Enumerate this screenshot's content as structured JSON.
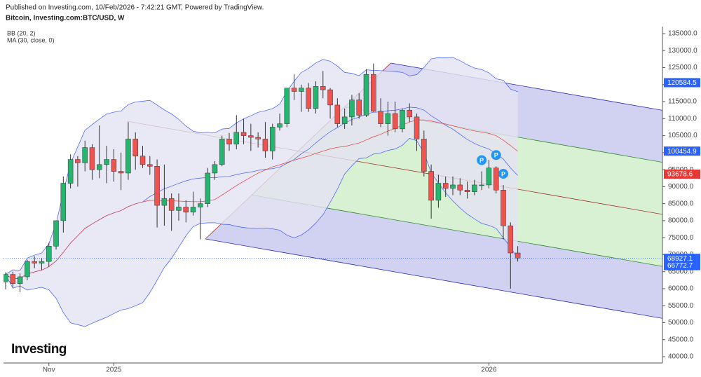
{
  "header": {
    "published": "Published on Investing.com, 10/Feb/2026 - 7:42:21 GMT, Powered by TradingView.",
    "symbol": "Bitcoin, Investing.com:BTC/USD, W"
  },
  "logo": "Investing",
  "chart_data": {
    "type": "candlestick",
    "indicators": [
      {
        "label": "BB (20, 2)",
        "kind": "bb",
        "period": 20,
        "mult": 2,
        "color": "#3d5afe",
        "fill": "#e3e3f3"
      },
      {
        "label": "MA (30, close, 0)",
        "kind": "ma",
        "period": 30,
        "color": "#e53935"
      }
    ],
    "up_color": "#26b56e",
    "down_color": "#ef5350",
    "categories": [
      null,
      null,
      null,
      null,
      null,
      null,
      "Nov",
      null,
      null,
      null,
      null,
      null,
      null,
      null,
      null,
      "2025",
      null,
      null,
      null,
      null,
      null,
      null,
      null,
      null,
      null,
      null,
      null,
      null,
      null,
      null,
      null,
      null,
      null,
      null,
      null,
      null,
      null,
      null,
      null,
      null,
      null,
      null,
      null,
      null,
      null,
      null,
      null,
      null,
      null,
      null,
      null,
      null,
      null,
      null,
      null,
      null,
      null,
      null,
      null,
      null,
      null,
      null,
      null,
      null,
      null,
      null,
      null,
      "2026",
      null,
      null,
      null,
      null
    ],
    "open": [
      62000,
      64200,
      61500,
      63500,
      68000,
      67500,
      68000,
      72500,
      80000,
      91000,
      98000,
      97000,
      101500,
      95000,
      96500,
      98000,
      94500,
      94000,
      104000,
      99000,
      96500,
      96000,
      84500,
      86500,
      83000,
      84000,
      82500,
      84000,
      85000,
      94000,
      96500,
      104000,
      102500,
      106000,
      105000,
      104500,
      104000,
      100500,
      107500,
      108500,
      119000,
      118000,
      119000,
      113000,
      119500,
      118500,
      114000,
      108500,
      110500,
      115500,
      111000,
      123000,
      112200,
      108500,
      111500,
      107000,
      112500,
      110500,
      104000,
      94500,
      86000,
      91000,
      89500,
      90500,
      89000,
      88500,
      90500,
      90500,
      95500,
      89000,
      78500,
      70500
    ],
    "high": [
      64800,
      65000,
      64500,
      68500,
      69500,
      69000,
      73500,
      80000,
      93000,
      99500,
      99000,
      103500,
      102500,
      108000,
      102000,
      101000,
      100000,
      109000,
      106000,
      102000,
      99000,
      98000,
      96500,
      88000,
      88000,
      86000,
      88500,
      86500,
      95500,
      97500,
      105000,
      105800,
      111000,
      110000,
      108500,
      106000,
      109000,
      108500,
      111500,
      119000,
      123000,
      120000,
      120500,
      121000,
      124000,
      119000,
      116000,
      113000,
      117000,
      117500,
      124500,
      126200,
      116000,
      115000,
      115000,
      113000,
      114500,
      111500,
      106500,
      96500,
      93500,
      93000,
      93000,
      92500,
      91500,
      92000,
      94500,
      97900,
      96000,
      90500,
      79500,
      72500
    ],
    "low": [
      59800,
      60500,
      59000,
      62500,
      66000,
      65500,
      66500,
      71500,
      76500,
      89500,
      90000,
      94500,
      92000,
      92500,
      91000,
      91500,
      89000,
      92000,
      95000,
      95500,
      93500,
      78000,
      78500,
      77000,
      80000,
      79500,
      81500,
      74500,
      84000,
      92000,
      96000,
      100500,
      101000,
      102500,
      100500,
      101500,
      98500,
      98000,
      106500,
      107500,
      115500,
      112000,
      112000,
      111500,
      116000,
      110000,
      107500,
      107000,
      108000,
      110000,
      110500,
      112000,
      107500,
      105000,
      106000,
      106000,
      109000,
      100500,
      93000,
      80600,
      83800,
      87000,
      87500,
      87500,
      86500,
      87500,
      89000,
      89500,
      88000,
      74500,
      60000,
      68000
    ],
    "close": [
      64200,
      61500,
      63500,
      68000,
      67500,
      68000,
      72500,
      80000,
      91000,
      98000,
      97000,
      101500,
      95000,
      96500,
      98000,
      94500,
      94000,
      104000,
      99000,
      96500,
      96000,
      84500,
      86500,
      83000,
      84000,
      82500,
      84000,
      85000,
      94000,
      96500,
      104000,
      102500,
      106000,
      105000,
      104500,
      104000,
      100500,
      107500,
      108500,
      119000,
      118000,
      119000,
      113000,
      119500,
      118500,
      114000,
      108500,
      110500,
      115500,
      111000,
      123000,
      112200,
      108500,
      111500,
      107000,
      112500,
      110500,
      104000,
      94500,
      86000,
      91000,
      89500,
      90500,
      89000,
      88500,
      90500,
      90500,
      95500,
      89000,
      78500,
      70500,
      69000
    ],
    "ylim": [
      38150,
      137060
    ],
    "yticks": [
      {
        "value": 40000,
        "label": "40000.0"
      },
      {
        "value": 45000,
        "label": "45000.0"
      },
      {
        "value": 50000,
        "label": "50000.0"
      },
      {
        "value": 55000,
        "label": "55000.0"
      },
      {
        "value": 60000,
        "label": "60000.0"
      },
      {
        "value": 65000,
        "label": "65000.0"
      },
      {
        "value": 70000,
        "label": "70000.0"
      },
      {
        "value": 75000,
        "label": "75000.0"
      },
      {
        "value": 80000,
        "label": "80000.0"
      },
      {
        "value": 85000,
        "label": "85000.0"
      },
      {
        "value": 90000,
        "label": "90000.0"
      },
      {
        "value": 95000,
        "label": "95000.0"
      },
      {
        "value": 100000,
        "label": "100000.0"
      },
      {
        "value": 105000,
        "label": "105000.0"
      },
      {
        "value": 110000,
        "label": "110000.0"
      },
      {
        "value": 115000,
        "label": "115000.0"
      },
      {
        "value": 120000,
        "label": "120000.0"
      },
      {
        "value": 125000,
        "label": "125000.0"
      },
      {
        "value": 130000,
        "label": "130000.0"
      },
      {
        "value": 135000,
        "label": "135000.0"
      }
    ],
    "price_labels": [
      {
        "value": 120584.5,
        "label": "120584.5",
        "color": "#2962ff"
      },
      {
        "value": 100454.9,
        "label": "100454.9",
        "color": "#2962ff"
      },
      {
        "value": 93678.6,
        "label": "93678.6",
        "color": "#e53935"
      },
      {
        "value": 68927.1,
        "label": "68927.1",
        "color": "#2962ff"
      },
      {
        "value": 66772.7,
        "label": "66772.7",
        "color": "#2962ff"
      }
    ],
    "last_price_index": 3,
    "pitchfork": {
      "points": [
        {
          "x": 16.8,
          "y": 109235
        },
        {
          "x": 27.7,
          "y": 74620
        },
        {
          "x": 53.4,
          "y": 126340
        }
      ],
      "median_color": "#a0302a",
      "outer_color": "#2a2ab0",
      "inner_color": "#2a8a2a",
      "outer_fill": "#c9c9ee",
      "inner_fill": "#d2efcb"
    },
    "markers": [
      {
        "label": "P",
        "index": 66
      },
      {
        "label": "P",
        "index": 68
      },
      {
        "label": "P",
        "index": 69
      }
    ]
  }
}
